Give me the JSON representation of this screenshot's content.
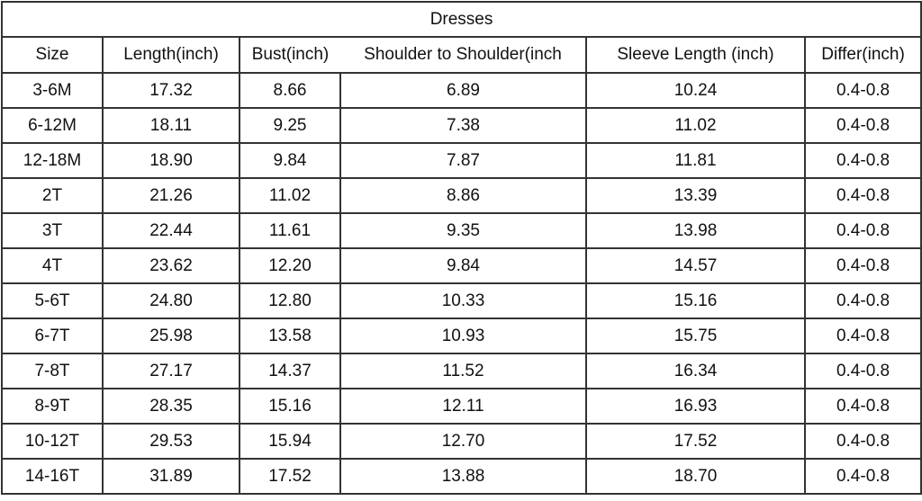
{
  "title": "Dresses",
  "headers": [
    "Size",
    "Length(inch)",
    "Bust(inch)",
    "Shoulder to Shoulder(inch",
    "Sleeve Length (inch)",
    "Differ(inch)"
  ],
  "rows": [
    [
      "3-6M",
      "17.32",
      "8.66",
      "6.89",
      "10.24",
      "0.4-0.8"
    ],
    [
      "6-12M",
      "18.11",
      "9.25",
      "7.38",
      "11.02",
      "0.4-0.8"
    ],
    [
      "12-18M",
      "18.90",
      "9.84",
      "7.87",
      "11.81",
      "0.4-0.8"
    ],
    [
      "2T",
      "21.26",
      "11.02",
      "8.86",
      "13.39",
      "0.4-0.8"
    ],
    [
      "3T",
      "22.44",
      "11.61",
      "9.35",
      "13.98",
      "0.4-0.8"
    ],
    [
      "4T",
      "23.62",
      "12.20",
      "9.84",
      "14.57",
      "0.4-0.8"
    ],
    [
      "5-6T",
      "24.80",
      "12.80",
      "10.33",
      "15.16",
      "0.4-0.8"
    ],
    [
      "6-7T",
      "25.98",
      "13.58",
      "10.93",
      "15.75",
      "0.4-0.8"
    ],
    [
      "7-8T",
      "27.17",
      "14.37",
      "11.52",
      "16.34",
      "0.4-0.8"
    ],
    [
      "8-9T",
      "28.35",
      "15.16",
      "12.11",
      "16.93",
      "0.4-0.8"
    ],
    [
      "10-12T",
      "29.53",
      "15.94",
      "12.70",
      "17.52",
      "0.4-0.8"
    ],
    [
      "14-16T",
      "31.89",
      "17.52",
      "13.88",
      "18.70",
      "0.4-0.8"
    ]
  ]
}
